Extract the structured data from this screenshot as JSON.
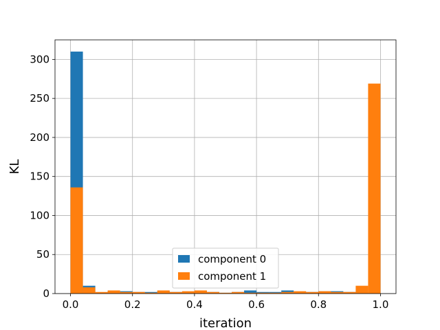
{
  "chart_data": {
    "type": "bar",
    "title": "",
    "xlabel": "iteration",
    "ylabel": "KL",
    "xlim": [
      -0.05,
      1.05
    ],
    "ylim": [
      0,
      325
    ],
    "grid": true,
    "legend_position": "lower center",
    "x_ticks": [
      "0.0",
      "0.2",
      "0.4",
      "0.6",
      "0.8",
      "1.0"
    ],
    "x_tick_values": [
      0.0,
      0.2,
      0.4,
      0.6,
      0.8,
      1.0
    ],
    "y_ticks": [
      "0",
      "50",
      "100",
      "150",
      "200",
      "250",
      "300"
    ],
    "y_tick_values": [
      0,
      50,
      100,
      150,
      200,
      250,
      300
    ],
    "bin_edges": [
      0.0,
      0.04,
      0.08,
      0.12,
      0.16,
      0.2,
      0.24,
      0.28,
      0.32,
      0.36,
      0.4,
      0.44,
      0.48,
      0.52,
      0.56,
      0.6,
      0.64,
      0.68,
      0.72,
      0.76,
      0.8,
      0.84,
      0.88,
      0.92,
      0.96,
      1.0
    ],
    "series": [
      {
        "name": "component 0",
        "color": "#1f77b4",
        "values": [
          310,
          10,
          1,
          3,
          3,
          2,
          2,
          3,
          2,
          2,
          3,
          2,
          1,
          2,
          4,
          2,
          2,
          4,
          2,
          2,
          3,
          3,
          2,
          1,
          0
        ]
      },
      {
        "name": "component 1",
        "color": "#ff7f0e",
        "values": [
          136,
          8,
          2,
          4,
          2,
          2,
          1,
          4,
          2,
          3,
          4,
          2,
          1,
          2,
          1,
          1,
          1,
          2,
          3,
          2,
          3,
          2,
          2,
          10,
          269
        ]
      }
    ]
  }
}
